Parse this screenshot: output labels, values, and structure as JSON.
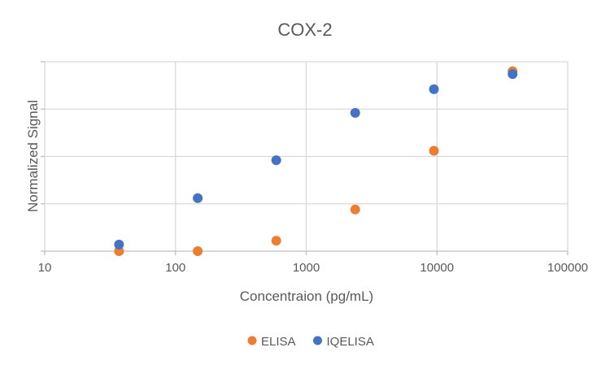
{
  "chart_data": {
    "type": "scatter",
    "title": "COX-2",
    "xlabel": "Concentraion (pg/mL)",
    "ylabel": "Normalized Signal",
    "x_scale": "log",
    "xlim": [
      10,
      100000
    ],
    "x_ticks": [
      "10",
      "100",
      "1000",
      "10000",
      "100000"
    ],
    "ylim": [
      0,
      1
    ],
    "y_gridlines": 4,
    "y_tick_labels_shown": false,
    "grid": true,
    "legend": "bottom",
    "series": [
      {
        "name": "ELISA",
        "color": "#ED7D31",
        "x": [
          37,
          148,
          590,
          2370,
          9480,
          37900
        ],
        "y": [
          0.0,
          0.0,
          0.055,
          0.22,
          0.53,
          0.95
        ]
      },
      {
        "name": "IQELISA",
        "color": "#4472C4",
        "x": [
          37,
          148,
          590,
          2370,
          9480,
          37900
        ],
        "y": [
          0.035,
          0.28,
          0.48,
          0.73,
          0.855,
          0.935
        ]
      }
    ]
  }
}
